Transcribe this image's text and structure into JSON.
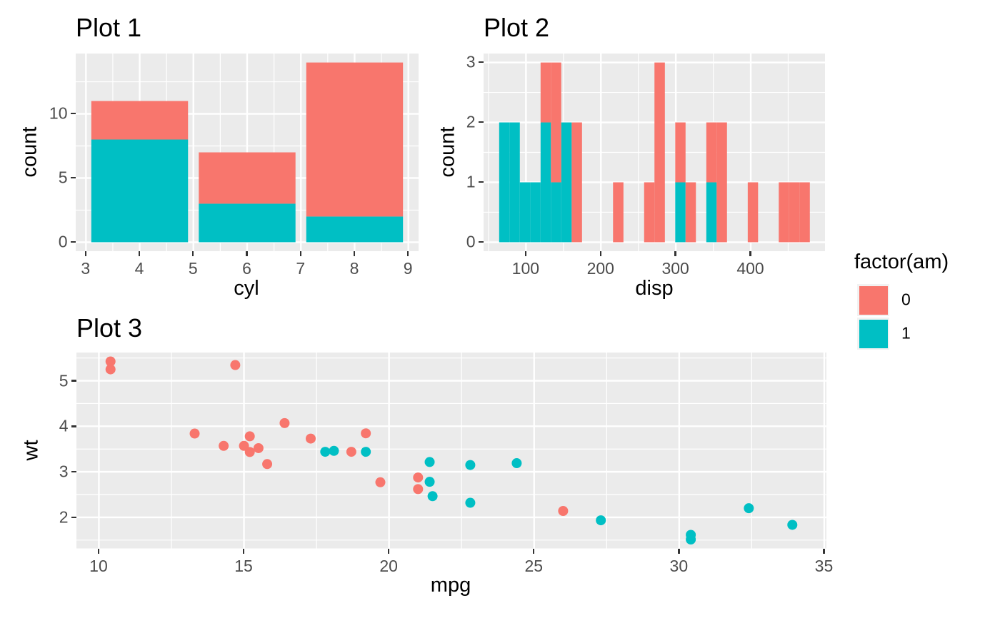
{
  "palette": {
    "am0_color": "#F8766D",
    "am1_color": "#00BFC4",
    "panel_background": "#EBEBEB",
    "grid_color": "#FFFFFF",
    "tick_mark_color": "#333333",
    "tick_label_color": "#4D4D4D",
    "legend_key_background": "#F2F2F2"
  },
  "legend": {
    "position": "right",
    "title": "factor(am)",
    "items": [
      {
        "label": "0",
        "color": "#F8766D"
      },
      {
        "label": "1",
        "color": "#00BFC4"
      }
    ]
  },
  "chart_data": [
    {
      "id": "plot1",
      "type": "bar",
      "title": "Plot 1",
      "xlabel": "cyl",
      "ylabel": "count",
      "stacking": "stacked",
      "grid": true,
      "categories": [
        4,
        6,
        8
      ],
      "bar_width": 1.8,
      "series": [
        {
          "name": "am=1",
          "color_key": "am1_color",
          "values": [
            8,
            3,
            2
          ]
        },
        {
          "name": "am=0",
          "color_key": "am0_color",
          "values": [
            3,
            4,
            12
          ]
        }
      ],
      "xlim": [
        2.81,
        9.19
      ],
      "ylim": [
        -0.7,
        14.7
      ],
      "xticks": [
        3,
        4,
        5,
        6,
        7,
        8,
        9
      ],
      "yticks": [
        0,
        5,
        10
      ],
      "xminor": [
        3.5,
        4.5,
        5.5,
        6.5,
        7.5,
        8.5
      ],
      "yminor": [
        2.5,
        7.5,
        12.5
      ]
    },
    {
      "id": "plot2",
      "type": "histogram",
      "title": "Plot 2",
      "xlabel": "disp",
      "ylabel": "count",
      "stacking": "stacked",
      "grid": true,
      "bin_width": 13.82,
      "bins": [
        {
          "x0": 64.2,
          "x1": 78.0,
          "am1": 2,
          "am0": 0
        },
        {
          "x0": 78.0,
          "x1": 91.8,
          "am1": 2,
          "am0": 0
        },
        {
          "x0": 91.8,
          "x1": 105.7,
          "am1": 1,
          "am0": 0
        },
        {
          "x0": 105.7,
          "x1": 119.5,
          "am1": 1,
          "am0": 0
        },
        {
          "x0": 119.5,
          "x1": 133.3,
          "am1": 2,
          "am0": 1
        },
        {
          "x0": 133.3,
          "x1": 147.1,
          "am1": 1,
          "am0": 2
        },
        {
          "x0": 147.1,
          "x1": 161.0,
          "am1": 2,
          "am0": 0
        },
        {
          "x0": 161.0,
          "x1": 174.8,
          "am1": 0,
          "am0": 2
        },
        {
          "x0": 216.2,
          "x1": 230.1,
          "am1": 0,
          "am0": 1
        },
        {
          "x0": 257.7,
          "x1": 271.5,
          "am1": 0,
          "am0": 1
        },
        {
          "x0": 271.5,
          "x1": 285.4,
          "am1": 0,
          "am0": 3
        },
        {
          "x0": 299.2,
          "x1": 313.0,
          "am1": 1,
          "am0": 1
        },
        {
          "x0": 313.0,
          "x1": 326.8,
          "am1": 0,
          "am0": 1
        },
        {
          "x0": 340.7,
          "x1": 354.5,
          "am1": 1,
          "am0": 1
        },
        {
          "x0": 354.5,
          "x1": 368.3,
          "am1": 0,
          "am0": 2
        },
        {
          "x0": 396.0,
          "x1": 409.8,
          "am1": 0,
          "am0": 1
        },
        {
          "x0": 437.4,
          "x1": 451.2,
          "am1": 0,
          "am0": 1
        },
        {
          "x0": 451.2,
          "x1": 465.1,
          "am1": 0,
          "am0": 1
        },
        {
          "x0": 465.1,
          "x1": 478.9,
          "am1": 0,
          "am0": 1
        }
      ],
      "xlim": [
        43.4,
        499.6
      ],
      "ylim": [
        -0.15,
        3.15
      ],
      "xticks": [
        100,
        200,
        300,
        400
      ],
      "yticks": [
        0,
        1,
        2,
        3
      ],
      "xminor": [
        50,
        150,
        250,
        350,
        450
      ],
      "yminor": [
        0.5,
        1.5,
        2.5
      ]
    },
    {
      "id": "plot3",
      "type": "scatter",
      "title": "Plot 3",
      "xlabel": "mpg",
      "ylabel": "wt",
      "grid": true,
      "point_radius": 7,
      "points": [
        {
          "x": 21.0,
          "y": 2.62,
          "g": 0
        },
        {
          "x": 21.0,
          "y": 2.875,
          "g": 0
        },
        {
          "x": 22.8,
          "y": 2.32,
          "g": 1
        },
        {
          "x": 21.4,
          "y": 3.215,
          "g": 1
        },
        {
          "x": 18.7,
          "y": 3.44,
          "g": 0
        },
        {
          "x": 18.1,
          "y": 3.46,
          "g": 1
        },
        {
          "x": 14.3,
          "y": 3.57,
          "g": 0
        },
        {
          "x": 24.4,
          "y": 3.19,
          "g": 1
        },
        {
          "x": 22.8,
          "y": 3.15,
          "g": 1
        },
        {
          "x": 19.2,
          "y": 3.44,
          "g": 1
        },
        {
          "x": 17.8,
          "y": 3.44,
          "g": 1
        },
        {
          "x": 16.4,
          "y": 4.07,
          "g": 0
        },
        {
          "x": 17.3,
          "y": 3.73,
          "g": 0
        },
        {
          "x": 15.2,
          "y": 3.78,
          "g": 0
        },
        {
          "x": 10.4,
          "y": 5.25,
          "g": 0
        },
        {
          "x": 10.4,
          "y": 5.424,
          "g": 0
        },
        {
          "x": 14.7,
          "y": 5.345,
          "g": 0
        },
        {
          "x": 32.4,
          "y": 2.2,
          "g": 1
        },
        {
          "x": 30.4,
          "y": 1.615,
          "g": 1
        },
        {
          "x": 33.9,
          "y": 1.835,
          "g": 1
        },
        {
          "x": 21.5,
          "y": 2.465,
          "g": 1
        },
        {
          "x": 15.5,
          "y": 3.52,
          "g": 0
        },
        {
          "x": 15.2,
          "y": 3.435,
          "g": 0
        },
        {
          "x": 13.3,
          "y": 3.84,
          "g": 0
        },
        {
          "x": 19.2,
          "y": 3.845,
          "g": 0
        },
        {
          "x": 27.3,
          "y": 1.935,
          "g": 1
        },
        {
          "x": 26.0,
          "y": 2.14,
          "g": 0
        },
        {
          "x": 30.4,
          "y": 1.513,
          "g": 1
        },
        {
          "x": 15.8,
          "y": 3.17,
          "g": 0
        },
        {
          "x": 19.7,
          "y": 2.77,
          "g": 0
        },
        {
          "x": 15.0,
          "y": 3.57,
          "g": 0
        },
        {
          "x": 21.4,
          "y": 2.78,
          "g": 1
        }
      ],
      "xlim": [
        9.225,
        35.075
      ],
      "ylim": [
        1.317,
        5.62
      ],
      "xticks": [
        10,
        15,
        20,
        25,
        30,
        35
      ],
      "yticks": [
        2,
        3,
        4,
        5
      ],
      "xminor": [
        12.5,
        17.5,
        22.5,
        27.5,
        32.5
      ],
      "yminor": [
        1.5,
        2.5,
        3.5,
        4.5,
        5.5
      ]
    }
  ]
}
